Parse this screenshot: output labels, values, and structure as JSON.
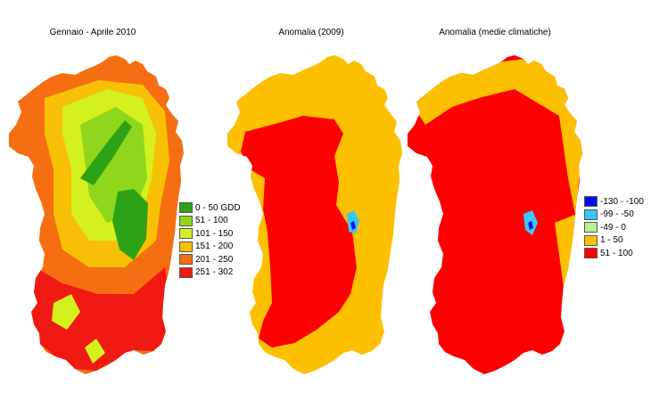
{
  "panels": [
    {
      "title": "Gennaio - Aprile 2010",
      "palette": "gdd"
    },
    {
      "title": "Anomalia (2009)",
      "palette": "anomaly2009"
    },
    {
      "title": "Anomalia (medie climatiche)",
      "palette": "anomalyclim"
    }
  ],
  "legends": {
    "gdd": [
      {
        "label": "0 - 50 GDD",
        "color": "#2ea216"
      },
      {
        "label": "51 - 100",
        "color": "#8fd61c"
      },
      {
        "label": "101 - 150",
        "color": "#d4f01e"
      },
      {
        "label": "151 - 200",
        "color": "#f8c005"
      },
      {
        "label": "201 - 250",
        "color": "#f66e12"
      },
      {
        "label": "251 - 302",
        "color": "#f01a12"
      }
    ],
    "anomaly": [
      {
        "label": "-130 - -100",
        "color": "#0010f0"
      },
      {
        "label": "-99 - -50",
        "color": "#38c8f8"
      },
      {
        "label": "-49 - 0",
        "color": "#b8f090"
      },
      {
        "label": "1 - 50",
        "color": "#fcc000"
      },
      {
        "label": "51 - 100",
        "color": "#fc0000"
      }
    ]
  }
}
